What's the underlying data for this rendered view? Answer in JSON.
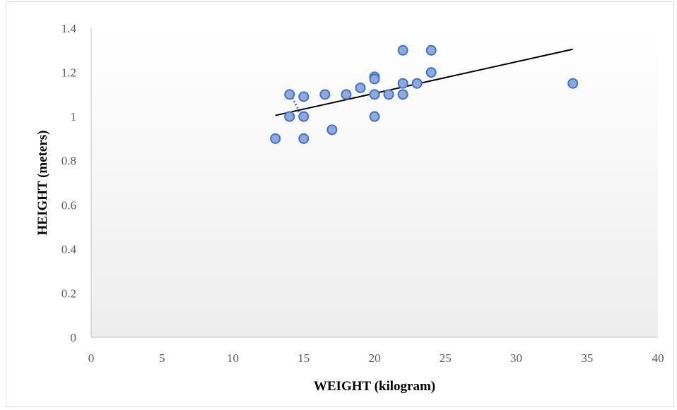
{
  "chart_data": {
    "type": "scatter",
    "title": "",
    "xlabel": "WEIGHT (kilogram)",
    "ylabel": "HEIGHT (meters)",
    "xlim": [
      0,
      40
    ],
    "ylim": [
      0,
      1.4
    ],
    "xticks": [
      0,
      5,
      10,
      15,
      20,
      25,
      30,
      35,
      40
    ],
    "xtick_labels": [
      "0",
      "5",
      "10",
      "15",
      "20",
      "25",
      "30",
      "35",
      "40"
    ],
    "yticks": [
      0,
      0.2,
      0.4,
      0.6,
      0.8,
      1,
      1.2,
      1.4
    ],
    "ytick_labels": [
      "0",
      "0.2",
      "0.4",
      "0.6",
      "0.8",
      "1",
      "1.2",
      "1.4"
    ],
    "grid": false,
    "legend": "none",
    "series": [
      {
        "points": [
          {
            "x": 13,
            "y": 0.9
          },
          {
            "x": 14,
            "y": 1.1
          },
          {
            "x": 14,
            "y": 1.0
          },
          {
            "x": 15,
            "y": 1.09
          },
          {
            "x": 15,
            "y": 1.0
          },
          {
            "x": 15,
            "y": 0.9
          },
          {
            "x": 16.5,
            "y": 1.1
          },
          {
            "x": 17,
            "y": 0.94
          },
          {
            "x": 18,
            "y": 1.1
          },
          {
            "x": 19,
            "y": 1.13
          },
          {
            "x": 20,
            "y": 1.18
          },
          {
            "x": 20,
            "y": 1.17
          },
          {
            "x": 20,
            "y": 1.1
          },
          {
            "x": 20,
            "y": 1.0
          },
          {
            "x": 21,
            "y": 1.1
          },
          {
            "x": 22,
            "y": 1.3
          },
          {
            "x": 22,
            "y": 1.15
          },
          {
            "x": 22,
            "y": 1.1
          },
          {
            "x": 23,
            "y": 1.15
          },
          {
            "x": 24,
            "y": 1.3
          },
          {
            "x": 24,
            "y": 1.2
          },
          {
            "x": 34,
            "y": 1.15
          }
        ]
      }
    ],
    "trendline": {
      "type": "linear",
      "x_start": 13,
      "y_start": 1.005,
      "x_end": 34,
      "y_end": 1.305
    },
    "colors": {
      "marker_fill": "#8ea9db",
      "marker_stroke": "#4472c4",
      "trendline": "#000000",
      "dotted_connector": "#4472c4",
      "axis_line": "#bfbfbf",
      "plot_gradient_top": "#ffffff",
      "plot_gradient_bottom": "#ededed"
    }
  }
}
